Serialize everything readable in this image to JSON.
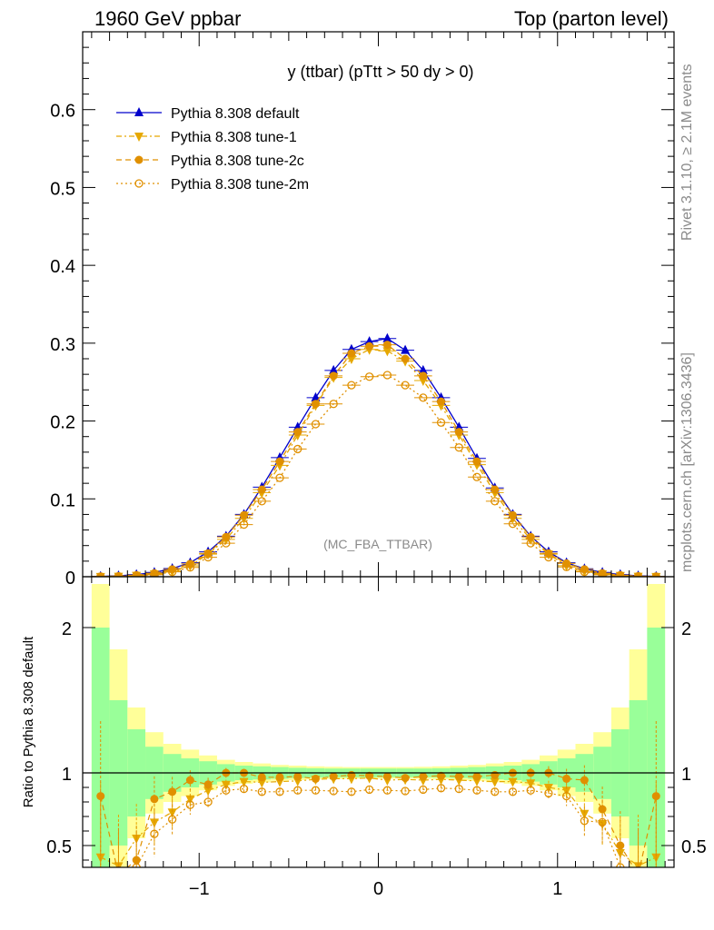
{
  "header": {
    "left": "1960 GeV ppbar",
    "right": "Top (parton level)"
  },
  "side": {
    "rivet": "Rivet 3.1.10, ≥ 2.1M events",
    "mcplots": "mcplots.cern.ch [arXiv:1306.3436]"
  },
  "chart_data": {
    "type": "line",
    "title": "y (ttbar) (pTtt > 50 dy > 0)",
    "watermark": "(MC_FBA_TTBAR)",
    "xlim": [
      -1.65,
      1.65
    ],
    "main": {
      "ylim": [
        0,
        0.7
      ],
      "yticks": [
        0,
        0.1,
        0.2,
        0.3,
        0.4,
        0.5,
        0.6
      ],
      "ytick_labels": [
        "0",
        "0.1",
        "0.2",
        "0.3",
        "0.4",
        "0.5",
        "0.6"
      ]
    },
    "ratio": {
      "ylabel": "Ratio to Pythia 8.308 default",
      "ylim": [
        0.35,
        2.35
      ],
      "yticks": [
        0.5,
        1,
        2
      ],
      "ytick_labels": [
        "0.5",
        "1",
        "2"
      ]
    },
    "xticks": [
      -1,
      0,
      1
    ],
    "xtick_labels": [
      "−1",
      "0",
      "1"
    ],
    "x": [
      -1.55,
      -1.45,
      -1.35,
      -1.25,
      -1.15,
      -1.05,
      -0.95,
      -0.85,
      -0.75,
      -0.65,
      -0.55,
      -0.45,
      -0.35,
      -0.25,
      -0.15,
      -0.05,
      0.05,
      0.15,
      0.25,
      0.35,
      0.45,
      0.55,
      0.65,
      0.75,
      0.85,
      0.95,
      1.05,
      1.15,
      1.25,
      1.35,
      1.45,
      1.55
    ],
    "band_green": [
      1.0,
      0.5,
      0.3,
      0.18,
      0.13,
      0.1,
      0.08,
      0.06,
      0.05,
      0.045,
      0.04,
      0.035,
      0.032,
      0.03,
      0.03,
      0.03,
      0.03,
      0.03,
      0.03,
      0.032,
      0.035,
      0.04,
      0.045,
      0.05,
      0.06,
      0.08,
      0.1,
      0.13,
      0.18,
      0.3,
      0.5,
      1.0
    ],
    "band_yellow": [
      1.3,
      0.85,
      0.45,
      0.28,
      0.2,
      0.16,
      0.12,
      0.09,
      0.075,
      0.065,
      0.055,
      0.05,
      0.045,
      0.042,
      0.04,
      0.04,
      0.04,
      0.04,
      0.042,
      0.045,
      0.05,
      0.055,
      0.065,
      0.075,
      0.09,
      0.12,
      0.16,
      0.2,
      0.28,
      0.45,
      0.85,
      1.3
    ],
    "series": [
      {
        "name": "Pythia 8.308 default",
        "color": "#0000cc",
        "marker": "triangle-up",
        "line": "solid",
        "values": [
          0.0004,
          0.0012,
          0.0028,
          0.0055,
          0.0105,
          0.018,
          0.032,
          0.052,
          0.08,
          0.115,
          0.153,
          0.192,
          0.23,
          0.265,
          0.292,
          0.302,
          0.306,
          0.291,
          0.265,
          0.23,
          0.192,
          0.152,
          0.114,
          0.08,
          0.052,
          0.032,
          0.018,
          0.0102,
          0.0055,
          0.0027,
          0.0012,
          0.0004
        ],
        "ratio": [
          1,
          1,
          1,
          1,
          1,
          1,
          1,
          1,
          1,
          1,
          1,
          1,
          1,
          1,
          1,
          1,
          1,
          1,
          1,
          1,
          1,
          1,
          1,
          1,
          1,
          1,
          1,
          1,
          1,
          1,
          1,
          1
        ]
      },
      {
        "name": "Pythia 8.308 tune-1",
        "color": "#e6a800",
        "marker": "triangle-down",
        "line": "dashdot",
        "values": [
          0.0002,
          0.0005,
          0.0016,
          0.0035,
          0.0072,
          0.014,
          0.029,
          0.048,
          0.075,
          0.108,
          0.143,
          0.182,
          0.22,
          0.256,
          0.28,
          0.292,
          0.29,
          0.277,
          0.252,
          0.22,
          0.182,
          0.144,
          0.108,
          0.075,
          0.048,
          0.029,
          0.0142,
          0.0072,
          0.0035,
          0.0015,
          0.0005,
          0.0002
        ],
        "ratio": [
          0.42,
          0.36,
          0.55,
          0.66,
          0.73,
          0.82,
          0.88,
          0.92,
          0.94,
          0.935,
          0.94,
          0.945,
          0.955,
          0.96,
          0.96,
          0.965,
          0.95,
          0.955,
          0.95,
          0.955,
          0.95,
          0.945,
          0.94,
          0.94,
          0.93,
          0.9,
          0.88,
          0.72,
          0.65,
          0.45,
          0.36,
          0.42
        ]
      },
      {
        "name": "Pythia 8.308 tune-2c",
        "color": "#e09000",
        "marker": "circle",
        "line": "dashed",
        "values": [
          0.0003,
          0.0008,
          0.002,
          0.0045,
          0.0095,
          0.0165,
          0.03,
          0.051,
          0.079,
          0.112,
          0.148,
          0.186,
          0.222,
          0.258,
          0.287,
          0.296,
          0.298,
          0.28,
          0.258,
          0.225,
          0.186,
          0.148,
          0.112,
          0.079,
          0.051,
          0.03,
          0.017,
          0.0095,
          0.0045,
          0.002,
          0.0008,
          0.0003
        ],
        "ratio": [
          0.84,
          0.3,
          0.4,
          0.82,
          0.87,
          0.95,
          0.92,
          1.0,
          1.0,
          0.97,
          0.97,
          0.975,
          0.96,
          0.975,
          0.985,
          0.98,
          0.975,
          0.965,
          0.975,
          0.98,
          0.975,
          0.975,
          0.985,
          1.0,
          1.0,
          1.0,
          0.96,
          0.95,
          0.75,
          0.5,
          0.3,
          0.84
        ]
      },
      {
        "name": "Pythia 8.308 tune-2m",
        "color": "#e09000",
        "marker": "circle-open",
        "line": "dotted",
        "values": [
          0.0001,
          0.0003,
          0.0009,
          0.0025,
          0.0062,
          0.012,
          0.025,
          0.043,
          0.067,
          0.097,
          0.127,
          0.164,
          0.196,
          0.222,
          0.246,
          0.257,
          0.259,
          0.246,
          0.23,
          0.198,
          0.166,
          0.128,
          0.097,
          0.068,
          0.043,
          0.025,
          0.0125,
          0.0062,
          0.0025,
          0.0009,
          0.0003,
          0.0001
        ],
        "ratio": [
          0.3,
          0.25,
          0.35,
          0.58,
          0.68,
          0.78,
          0.8,
          0.88,
          0.89,
          0.87,
          0.87,
          0.88,
          0.88,
          0.875,
          0.87,
          0.885,
          0.88,
          0.875,
          0.885,
          0.895,
          0.89,
          0.88,
          0.87,
          0.87,
          0.88,
          0.86,
          0.84,
          0.67,
          0.66,
          0.35,
          0.25,
          0.3
        ]
      }
    ]
  }
}
